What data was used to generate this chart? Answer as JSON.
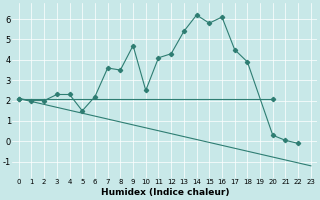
{
  "xlabel": "Humidex (Indice chaleur)",
  "background_color": "#c8e8e8",
  "line_color": "#2e7d72",
  "grid_color": "#ffffff",
  "xlim": [
    -0.5,
    23.5
  ],
  "ylim": [
    -1.8,
    6.8
  ],
  "yticks": [
    -1,
    0,
    1,
    2,
    3,
    4,
    5,
    6
  ],
  "xticks": [
    0,
    1,
    2,
    3,
    4,
    5,
    6,
    7,
    8,
    9,
    10,
    11,
    12,
    13,
    14,
    15,
    16,
    17,
    18,
    19,
    20,
    21,
    22,
    23
  ],
  "line1_x": [
    0,
    1,
    2,
    3,
    4,
    5,
    6,
    7,
    8,
    9,
    10,
    11,
    12,
    13,
    14,
    15,
    16,
    17,
    18,
    20,
    21,
    22
  ],
  "line1_y": [
    2.1,
    2.0,
    2.0,
    2.3,
    2.3,
    1.5,
    2.2,
    3.6,
    3.5,
    4.7,
    2.5,
    4.1,
    4.3,
    5.4,
    6.2,
    5.8,
    6.1,
    4.5,
    3.9,
    0.3,
    0.05,
    -0.1
  ],
  "line2_x": [
    0,
    20
  ],
  "line2_y": [
    2.1,
    2.1
  ],
  "line3_x": [
    0,
    23
  ],
  "line3_y": [
    2.1,
    -1.2
  ],
  "xlabel_fontsize": 6.5,
  "tick_fontsize_x": 5,
  "tick_fontsize_y": 6,
  "linewidth": 0.8,
  "markersize": 2.2
}
